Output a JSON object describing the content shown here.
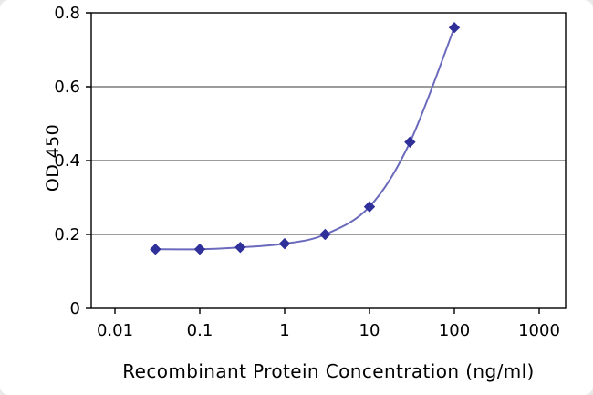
{
  "chart_data": {
    "type": "line",
    "title": "",
    "xlabel": "Recombinant Protein Concentration (ng/ml)",
    "ylabel": "OD 450",
    "x_scale": "log",
    "xlim": [
      0.01,
      1000
    ],
    "ylim": [
      0,
      0.8
    ],
    "x_ticks": [
      0.01,
      0.1,
      1,
      10,
      100,
      1000
    ],
    "x_tick_labels": [
      "0.01",
      "0.1",
      "1",
      "10",
      "100",
      "1000"
    ],
    "y_ticks": [
      0,
      0.2,
      0.4,
      0.6,
      0.8
    ],
    "y_tick_labels": [
      "0",
      "0.2",
      "0.4",
      "0.6",
      "0.8"
    ],
    "grid": "horizontal",
    "legend": "none",
    "series": [
      {
        "name": "OD 450",
        "marker": "diamond",
        "smooth": true,
        "x": [
          0.03,
          0.1,
          0.3,
          1,
          3,
          10,
          30,
          100
        ],
        "y": [
          0.16,
          0.16,
          0.165,
          0.175,
          0.2,
          0.275,
          0.45,
          0.76
        ]
      }
    ],
    "colors": {
      "line": "#6b6bbd",
      "marker": "#30309a",
      "grid": "#3a3a3a",
      "axis": "#000000",
      "text": "#000000",
      "plot_background": "#ffffff"
    }
  }
}
